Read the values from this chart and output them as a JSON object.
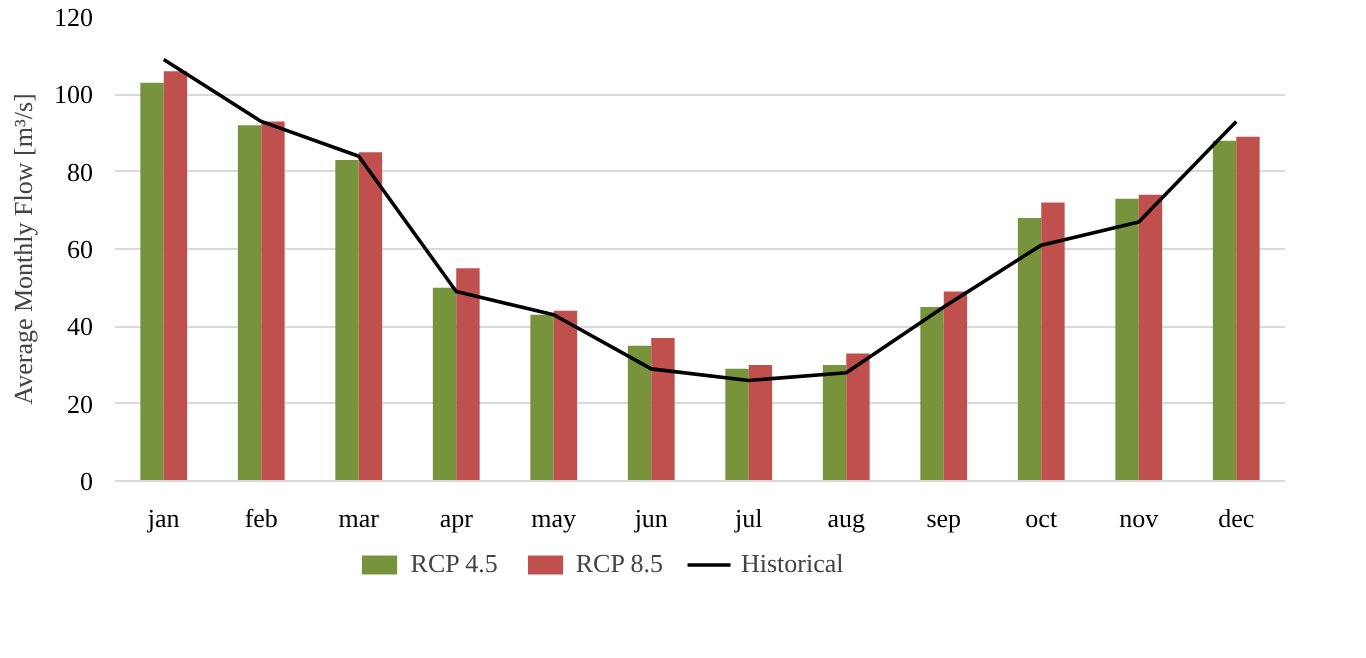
{
  "chart_data": {
    "type": "bar",
    "ylabel": "Average Monthly Flow [m³/s]",
    "categories": [
      "jan",
      "feb",
      "mar",
      "apr",
      "may",
      "jun",
      "jul",
      "aug",
      "sep",
      "oct",
      "nov",
      "dec"
    ],
    "series": [
      {
        "name": "RCP 4.5",
        "color": "#77933c",
        "values": [
          103,
          92,
          83,
          50,
          43,
          35,
          29,
          30,
          45,
          68,
          73,
          88
        ]
      },
      {
        "name": "RCP 8.5",
        "color": "#c0504d",
        "values": [
          106,
          93,
          85,
          55,
          44,
          37,
          30,
          33,
          49,
          72,
          74,
          89
        ]
      },
      {
        "name": "Historical",
        "type": "line",
        "color": "#000000",
        "values": [
          109,
          93,
          84,
          49,
          43,
          29,
          26,
          28,
          45,
          61,
          67,
          93
        ]
      }
    ],
    "ylim": [
      0,
      120
    ],
    "yticks": [
      0,
      20,
      40,
      60,
      80,
      100,
      120
    ],
    "grid": "y",
    "legend": "bottom"
  }
}
